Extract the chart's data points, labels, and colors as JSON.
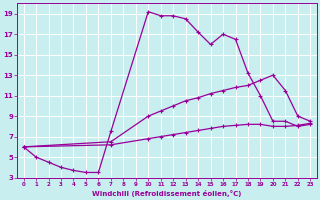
{
  "xlabel": "Windchill (Refroidissement éolien,°C)",
  "background_color": "#c8eef0",
  "line_color": "#990099",
  "grid_color": "#ffffff",
  "xlim": [
    -0.5,
    23.5
  ],
  "ylim": [
    3,
    20
  ],
  "xticks": [
    0,
    1,
    2,
    3,
    4,
    5,
    6,
    7,
    8,
    9,
    10,
    11,
    12,
    13,
    14,
    15,
    16,
    17,
    18,
    19,
    20,
    21,
    22,
    23
  ],
  "yticks": [
    3,
    5,
    7,
    9,
    11,
    13,
    15,
    17,
    19
  ],
  "line1_x": [
    0,
    1,
    2,
    3,
    4,
    5,
    6,
    7,
    10,
    11,
    12,
    13,
    14,
    15,
    16,
    17,
    18,
    19,
    20,
    21,
    22,
    23
  ],
  "line1_y": [
    6.0,
    5.0,
    4.5,
    4.0,
    3.7,
    3.5,
    3.5,
    7.5,
    19.2,
    18.8,
    18.8,
    18.5,
    17.2,
    16.0,
    17.0,
    16.5,
    13.2,
    11.0,
    8.5,
    8.5,
    8.0,
    8.2
  ],
  "line2_x": [
    0,
    7,
    10,
    11,
    12,
    13,
    14,
    15,
    16,
    17,
    18,
    19,
    20,
    21,
    22,
    23
  ],
  "line2_y": [
    6.0,
    6.5,
    9.0,
    9.5,
    10.0,
    10.5,
    10.8,
    11.2,
    11.5,
    11.8,
    12.0,
    12.5,
    13.0,
    11.5,
    9.0,
    8.5
  ],
  "line3_x": [
    0,
    7,
    10,
    11,
    12,
    13,
    14,
    15,
    16,
    17,
    18,
    19,
    20,
    21,
    22,
    23
  ],
  "line3_y": [
    6.0,
    6.2,
    6.8,
    7.0,
    7.2,
    7.4,
    7.6,
    7.8,
    8.0,
    8.1,
    8.2,
    8.2,
    8.0,
    8.0,
    8.1,
    8.3
  ]
}
